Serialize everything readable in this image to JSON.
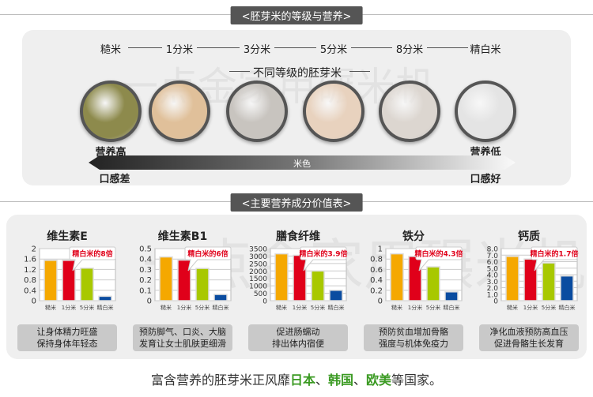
{
  "section1": {
    "title": "<胚芽米的等级与营养>",
    "grades": [
      "糙米",
      "1分米",
      "3分米",
      "5分米",
      "8分米",
      "精白米"
    ],
    "subtitle": "不同等级的胚芽米",
    "nutrition_high": "营养高",
    "nutrition_low": "营养低",
    "color_label": "米色",
    "taste_bad": "口感差",
    "taste_good": "口感好",
    "rice_colors": [
      "#8d8a4c",
      "#e0c09a",
      "#c8c4bf",
      "#e8d2be",
      "#dcd6d0",
      "#e4e4e4"
    ]
  },
  "watermark": "一点金家用碾米机",
  "section2": {
    "title": "<主要营养成分价值表>",
    "categories": [
      "糙米",
      "1分米",
      "5分米",
      "精白米"
    ]
  },
  "colors": [
    "#f5a800",
    "#e0001a",
    "#a8c800",
    "#0a4ca0"
  ],
  "chart_data": [
    {
      "type": "bar",
      "title": "维生素E",
      "ylim": [
        0,
        2
      ],
      "ticks": [
        "0",
        "0.4",
        "0.8",
        "1.2",
        "1.6",
        "2"
      ],
      "values": [
        1.55,
        1.55,
        1.25,
        0.17
      ],
      "callout": "精白米的8倍",
      "desc": [
        "让身体精力旺盛",
        "保持身体年轻态"
      ]
    },
    {
      "type": "bar",
      "title": "维生素B1",
      "ylim": [
        0,
        0.5
      ],
      "ticks": [
        "0",
        "0.1",
        "0.2",
        "0.3",
        "0.4",
        "0.5"
      ],
      "values": [
        0.42,
        0.39,
        0.31,
        0.06
      ],
      "callout": "精白米的6倍",
      "desc": [
        "预防脚气、口炎、大脑",
        "发育让女士肌肤更细滑"
      ]
    },
    {
      "type": "bar",
      "title": "膳食纤维",
      "ylim": [
        0,
        3500
      ],
      "ticks": [
        "0",
        "500",
        "1000",
        "1500",
        "2000",
        "2500",
        "3000",
        "3500"
      ],
      "values": [
        3150,
        3050,
        2000,
        700
      ],
      "callout": "精白米的3.9倍",
      "desc": [
        "促进肠蠕动",
        "排出体内宿便"
      ]
    },
    {
      "type": "bar",
      "title": "铁分",
      "ylim": [
        0,
        1
      ],
      "ticks": [
        "0",
        "0.2",
        "0.4",
        "0.6",
        "0.8",
        "1"
      ],
      "values": [
        0.9,
        0.85,
        0.65,
        0.17
      ],
      "callout": "精白米的4.3倍",
      "desc": [
        "预防贫血增加骨骼",
        "强度与机体免疫力"
      ]
    },
    {
      "type": "bar",
      "title": "钙质",
      "ylim": [
        0,
        8
      ],
      "ticks": [
        "0",
        "1.0",
        "2.0",
        "3.0",
        "4.0",
        "5.0",
        "6.0",
        "7.0",
        "8.0"
      ],
      "values": [
        6.8,
        6.4,
        5.8,
        3.8
      ],
      "callout": "精白米的1.7倍",
      "desc": [
        "净化血液预防高血压",
        "促进骨骼生长发育"
      ]
    }
  ],
  "footer": {
    "pre": "富含营养的胚芽米正风靡",
    "c1": "日本",
    "s1": "、",
    "c2": "韩国",
    "s2": "、",
    "c3": "欧美",
    "post": "等国家。"
  }
}
